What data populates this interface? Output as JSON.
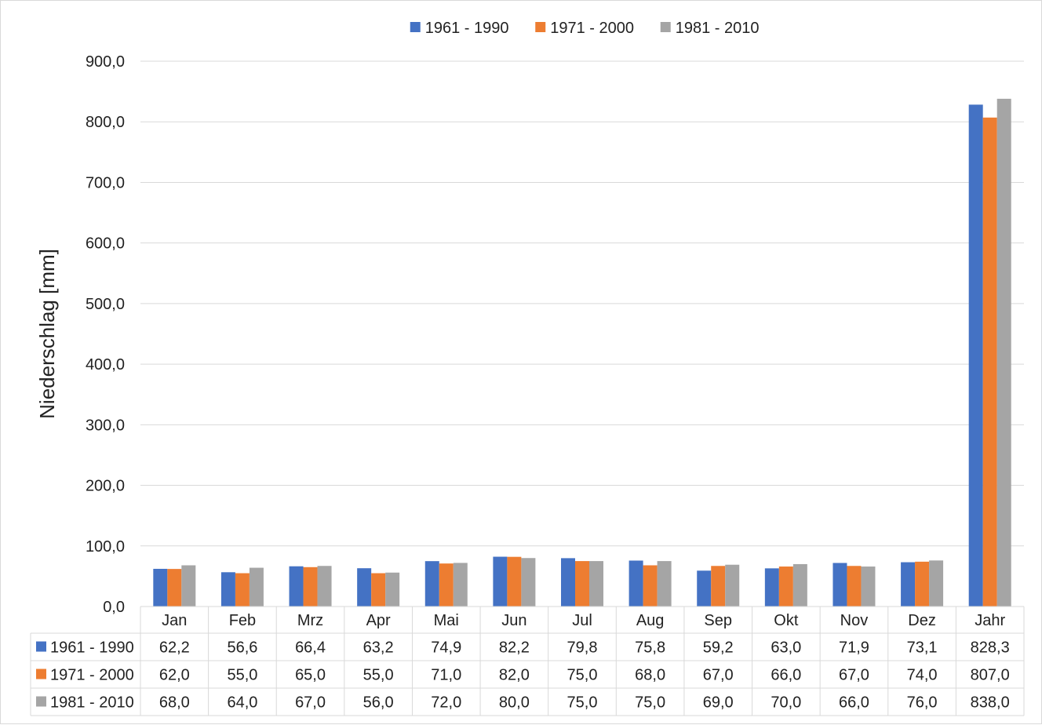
{
  "chart_data": {
    "type": "bar",
    "ylabel": "Niederschlag [mm]",
    "xlabel": "",
    "ylim": [
      0,
      900
    ],
    "yticks": [
      "0,0",
      "100,0",
      "200,0",
      "300,0",
      "400,0",
      "500,0",
      "600,0",
      "700,0",
      "800,0",
      "900,0"
    ],
    "grid": true,
    "legend_position": "top",
    "categories": [
      "Jan",
      "Feb",
      "Mrz",
      "Apr",
      "Mai",
      "Jun",
      "Jul",
      "Aug",
      "Sep",
      "Okt",
      "Nov",
      "Dez",
      "Jahr"
    ],
    "series": [
      {
        "name": "1961 - 1990",
        "color": "#4472C4",
        "values": [
          62.2,
          56.6,
          66.4,
          63.2,
          74.9,
          82.2,
          79.8,
          75.8,
          59.2,
          63.0,
          71.9,
          73.1,
          828.3
        ],
        "labels": [
          "62,2",
          "56,6",
          "66,4",
          "63,2",
          "74,9",
          "82,2",
          "79,8",
          "75,8",
          "59,2",
          "63,0",
          "71,9",
          "73,1",
          "828,3"
        ]
      },
      {
        "name": "1971 - 2000",
        "color": "#ED7D31",
        "values": [
          62.0,
          55.0,
          65.0,
          55.0,
          71.0,
          82.0,
          75.0,
          68.0,
          67.0,
          66.0,
          67.0,
          74.0,
          807.0
        ],
        "labels": [
          "62,0",
          "55,0",
          "65,0",
          "55,0",
          "71,0",
          "82,0",
          "75,0",
          "68,0",
          "67,0",
          "66,0",
          "67,0",
          "74,0",
          "807,0"
        ]
      },
      {
        "name": "1981 - 2010",
        "color": "#A5A5A5",
        "values": [
          68.0,
          64.0,
          67.0,
          56.0,
          72.0,
          80.0,
          75.0,
          75.0,
          69.0,
          70.0,
          66.0,
          76.0,
          838.0
        ],
        "labels": [
          "68,0",
          "64,0",
          "67,0",
          "56,0",
          "72,0",
          "80,0",
          "75,0",
          "75,0",
          "69,0",
          "70,0",
          "66,0",
          "76,0",
          "838,0"
        ]
      }
    ]
  }
}
